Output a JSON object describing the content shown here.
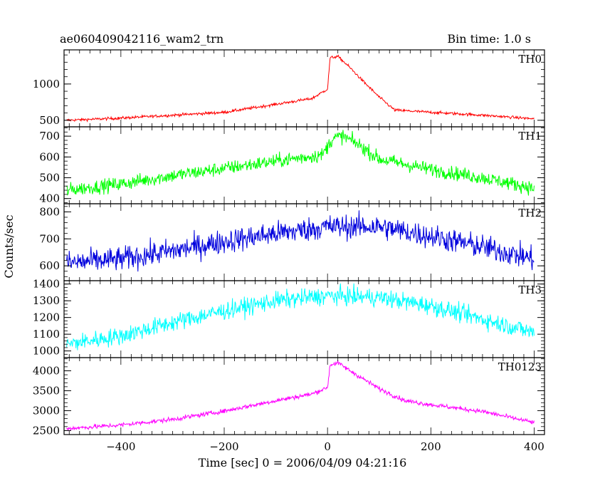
{
  "chart_data": {
    "type": "line",
    "title": "ae060409042116_wam2_trn",
    "subtitle": "Bin time: 1.0 s",
    "xlabel": "Time [sec] 0 = 2006/04/09 04:21:16",
    "ylabel": "Counts/sec",
    "xlim": [
      -510,
      420
    ],
    "x_ticks": [
      -400,
      -200,
      0,
      200,
      400
    ],
    "x_tick_labels": [
      "−400",
      "−200",
      "0",
      "200",
      "400"
    ],
    "bin_time_s": 1.0,
    "grid": false,
    "legend": "none",
    "panels": [
      {
        "name": "TH0",
        "color": "#ff0000",
        "ylim": [
          410,
          1470
        ],
        "y_ticks": [
          500,
          1000
        ],
        "y_tick_labels": [
          "500",
          "1000"
        ],
        "noise": 14,
        "profile": [
          [
            -505,
            500
          ],
          [
            -400,
            530
          ],
          [
            -300,
            570
          ],
          [
            -200,
            610
          ],
          [
            -100,
            720
          ],
          [
            -30,
            800
          ],
          [
            0,
            930
          ],
          [
            5,
            1360
          ],
          [
            20,
            1380
          ],
          [
            40,
            1250
          ],
          [
            70,
            1030
          ],
          [
            100,
            820
          ],
          [
            130,
            640
          ],
          [
            200,
            610
          ],
          [
            300,
            570
          ],
          [
            400,
            520
          ]
        ]
      },
      {
        "name": "TH1",
        "color": "#00ff00",
        "ylim": [
          375,
          745
        ],
        "y_ticks": [
          400,
          500,
          600,
          700
        ],
        "y_tick_labels": [
          "400",
          "500",
          "600",
          "700"
        ],
        "noise": 24,
        "profile": [
          [
            -505,
            440
          ],
          [
            -400,
            470
          ],
          [
            -300,
            510
          ],
          [
            -200,
            545
          ],
          [
            -100,
            580
          ],
          [
            -10,
            610
          ],
          [
            0,
            650
          ],
          [
            10,
            690
          ],
          [
            30,
            700
          ],
          [
            60,
            660
          ],
          [
            100,
            590
          ],
          [
            200,
            540
          ],
          [
            300,
            500
          ],
          [
            400,
            450
          ]
        ]
      },
      {
        "name": "TH2",
        "color": "#0000dd",
        "ylim": [
          545,
          830
        ],
        "y_ticks": [
          600,
          700,
          800
        ],
        "y_tick_labels": [
          "600",
          "700",
          "800"
        ],
        "noise": 32,
        "profile": [
          [
            -505,
            610
          ],
          [
            -400,
            625
          ],
          [
            -300,
            655
          ],
          [
            -200,
            690
          ],
          [
            -100,
            720
          ],
          [
            0,
            745
          ],
          [
            100,
            745
          ],
          [
            200,
            710
          ],
          [
            300,
            670
          ],
          [
            400,
            625
          ]
        ]
      },
      {
        "name": "TH3",
        "color": "#00ffff",
        "ylim": [
          960,
          1420
        ],
        "y_ticks": [
          1000,
          1100,
          1200,
          1300,
          1400
        ],
        "y_tick_labels": [
          "1000",
          "1100",
          "1200",
          "1300",
          "1400"
        ],
        "noise": 38,
        "profile": [
          [
            -505,
            1040
          ],
          [
            -400,
            1090
          ],
          [
            -300,
            1170
          ],
          [
            -200,
            1240
          ],
          [
            -100,
            1300
          ],
          [
            0,
            1330
          ],
          [
            100,
            1320
          ],
          [
            200,
            1270
          ],
          [
            300,
            1190
          ],
          [
            400,
            1110
          ]
        ]
      },
      {
        "name": "TH0123",
        "color": "#ff00ff",
        "ylim": [
          2400,
          4330
        ],
        "y_ticks": [
          2500,
          3000,
          3500,
          4000
        ],
        "y_tick_labels": [
          "2500",
          "3000",
          "3500",
          "4000"
        ],
        "noise": 40,
        "profile": [
          [
            -505,
            2550
          ],
          [
            -400,
            2640
          ],
          [
            -300,
            2780
          ],
          [
            -200,
            2990
          ],
          [
            -100,
            3250
          ],
          [
            -30,
            3420
          ],
          [
            0,
            3580
          ],
          [
            5,
            4150
          ],
          [
            20,
            4200
          ],
          [
            50,
            3950
          ],
          [
            100,
            3550
          ],
          [
            150,
            3250
          ],
          [
            200,
            3150
          ],
          [
            300,
            2980
          ],
          [
            400,
            2700
          ]
        ]
      }
    ]
  }
}
